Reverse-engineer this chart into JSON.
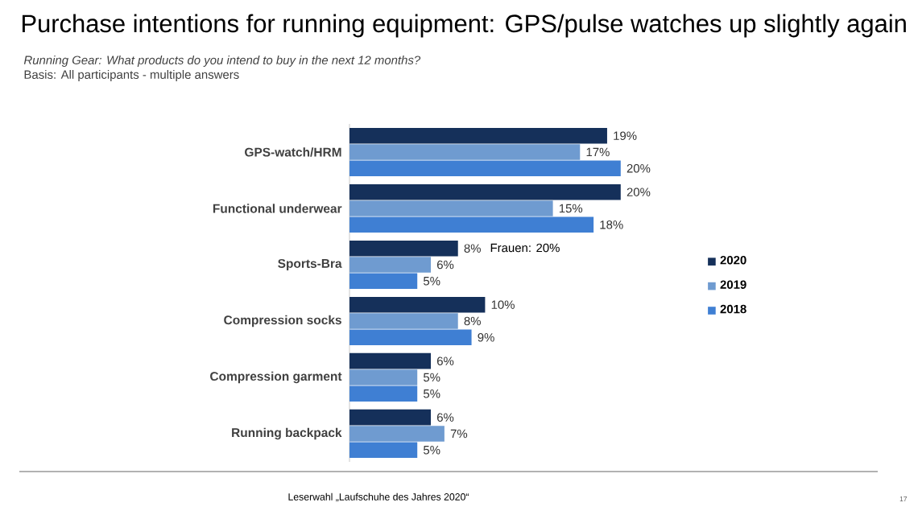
{
  "chart_data": {
    "type": "bar",
    "orientation": "horizontal",
    "title": "Purchase intentions for running equipment: GPS/pulse watches up slightly again",
    "subtitle": "Running Gear: What products do you intend to buy in the next 12 months?",
    "categories": [
      "GPS-watch/HRM",
      "Functional underwear",
      "Sports-Bra",
      "Compression socks",
      "Compression garment",
      "Running backpack"
    ],
    "series": [
      {
        "name": "2020",
        "color": "#15305a",
        "values": [
          19,
          20,
          8,
          10,
          6,
          6
        ],
        "value_labels": [
          "19%",
          "20%",
          "8%",
          "10%",
          "6%",
          "6%"
        ]
      },
      {
        "name": "2019",
        "color": "#6f9bd0",
        "values": [
          17,
          15,
          6,
          8,
          5,
          7
        ],
        "value_labels": [
          "17%",
          "15%",
          "6%",
          "8%",
          "5%",
          "7%"
        ]
      },
      {
        "name": "2018",
        "color": "#3f7fd3",
        "values": [
          20,
          18,
          5,
          9,
          5,
          5
        ],
        "value_labels": [
          "20%",
          "18%",
          "5%",
          "9%",
          "5%",
          "5%"
        ]
      }
    ],
    "legend": "right",
    "annotations": [
      "Basis: All participants - multiple answers",
      "Frauen: 20%",
      "Leserwahl „Laufschuhe des Jahres 2020“",
      "17"
    ]
  }
}
